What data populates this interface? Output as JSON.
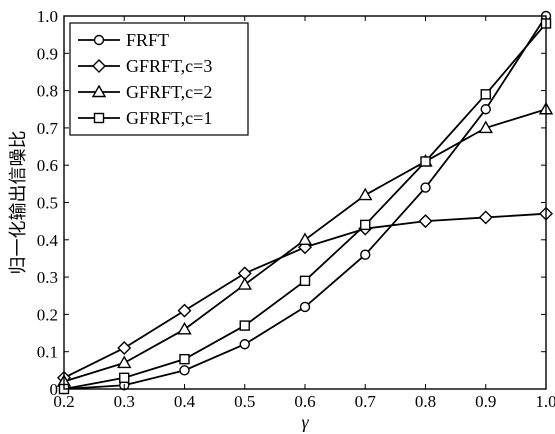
{
  "chart_data": {
    "type": "line",
    "title": "",
    "xlabel": "γ",
    "ylabel": "归一化输出信噪比",
    "xlim": [
      0.2,
      1.0
    ],
    "ylim": [
      0,
      1.0
    ],
    "xticks": [
      "0.2",
      "0.3",
      "0.4",
      "0.5",
      "0.6",
      "0.7",
      "0.8",
      "0.9",
      "1.0"
    ],
    "yticks": [
      "0",
      "0.1",
      "0.2",
      "0.3",
      "0.4",
      "0.5",
      "0.6",
      "0.7",
      "0.8",
      "0.9",
      "1.0"
    ],
    "x": [
      0.2,
      0.3,
      0.4,
      0.5,
      0.6,
      0.7,
      0.8,
      0.9,
      1.0
    ],
    "grid": false,
    "legend_position": "top-left",
    "series": [
      {
        "name": "FRFT",
        "marker": "circle",
        "values": [
          0.0,
          0.01,
          0.05,
          0.12,
          0.22,
          0.36,
          0.54,
          0.75,
          1.0
        ]
      },
      {
        "name": "GFRFT,c=3",
        "marker": "diamond",
        "values": [
          0.03,
          0.11,
          0.21,
          0.31,
          0.38,
          0.43,
          0.45,
          0.46,
          0.47
        ]
      },
      {
        "name": "GFRFT,c=2",
        "marker": "triangle",
        "values": [
          0.02,
          0.07,
          0.16,
          0.28,
          0.4,
          0.52,
          0.61,
          0.7,
          0.75
        ]
      },
      {
        "name": "GFRFT,c=1",
        "marker": "square",
        "values": [
          0.0,
          0.03,
          0.08,
          0.17,
          0.29,
          0.44,
          0.61,
          0.79,
          0.98
        ]
      }
    ]
  }
}
